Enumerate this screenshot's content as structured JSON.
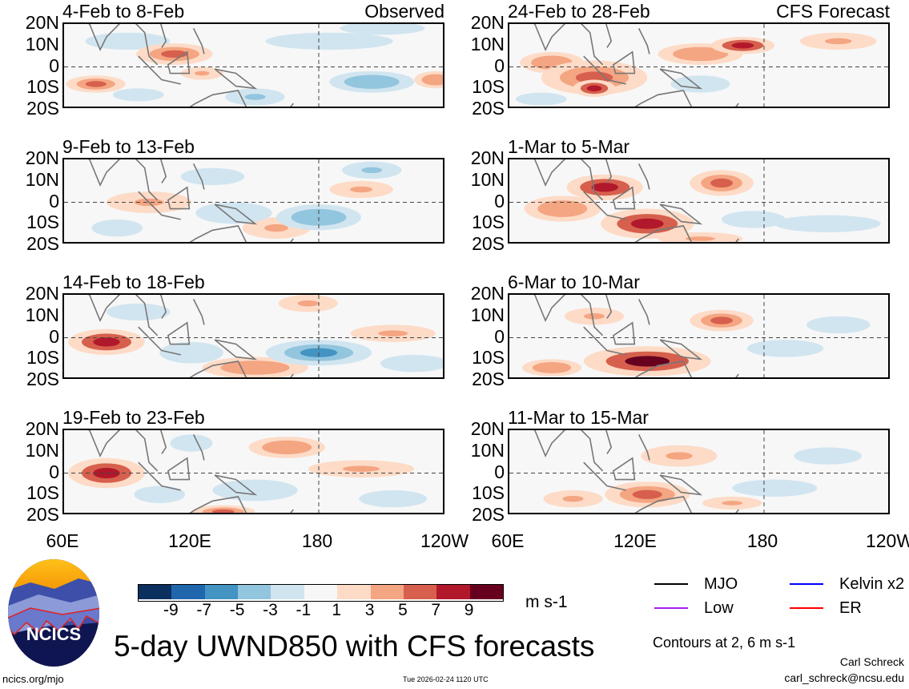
{
  "panels": [
    {
      "title": "4-Feb to 8-Feb",
      "tag": "Observed",
      "anomalies": [
        [
          112,
          6,
          18,
          5,
          6
        ],
        [
          75,
          -8,
          14,
          4,
          5
        ],
        [
          125,
          -3,
          10,
          3,
          3
        ],
        [
          205,
          -7,
          20,
          5,
          -5
        ],
        [
          150,
          -14,
          14,
          4,
          -4
        ],
        [
          95,
          -13,
          12,
          3,
          -3
        ],
        [
          90,
          12,
          20,
          4,
          -2
        ],
        [
          235,
          -6,
          10,
          4,
          4
        ],
        [
          185,
          12,
          30,
          4,
          -2
        ],
        [
          210,
          18,
          20,
          3,
          -3
        ]
      ]
    },
    {
      "title": "24-Feb to 28-Feb",
      "tag": "CFS Forecast",
      "anomalies": [
        [
          100,
          -5,
          25,
          8,
          6
        ],
        [
          80,
          2,
          15,
          5,
          4
        ],
        [
          150,
          6,
          20,
          5,
          4
        ],
        [
          170,
          10,
          15,
          4,
          7
        ],
        [
          215,
          12,
          18,
          4,
          3
        ],
        [
          100,
          -10,
          10,
          4,
          8
        ],
        [
          150,
          -8,
          14,
          4,
          -3
        ],
        [
          75,
          -15,
          12,
          3,
          -3
        ]
      ]
    },
    {
      "title": "9-Feb to 13-Feb",
      "tag": "",
      "anomalies": [
        [
          180,
          -7,
          20,
          6,
          -5
        ],
        [
          160,
          -12,
          16,
          5,
          3
        ],
        [
          140,
          -5,
          18,
          5,
          -3
        ],
        [
          100,
          0,
          20,
          5,
          3
        ],
        [
          205,
          15,
          14,
          4,
          -4
        ],
        [
          130,
          12,
          15,
          4,
          -2
        ],
        [
          85,
          -12,
          12,
          4,
          -3
        ],
        [
          200,
          6,
          15,
          4,
          3
        ]
      ]
    },
    {
      "title": "1-Mar to 5-Mar",
      "tag": "",
      "anomalies": [
        [
          105,
          7,
          18,
          6,
          7
        ],
        [
          125,
          -10,
          22,
          7,
          8
        ],
        [
          160,
          9,
          15,
          6,
          6
        ],
        [
          85,
          -3,
          18,
          6,
          4
        ],
        [
          175,
          -8,
          15,
          4,
          -3
        ],
        [
          210,
          -10,
          25,
          4,
          -3
        ],
        [
          150,
          -17,
          20,
          3,
          3
        ]
      ]
    },
    {
      "title": "14-Feb to 18-Feb",
      "tag": "",
      "anomalies": [
        [
          80,
          -2,
          18,
          6,
          8
        ],
        [
          180,
          -7,
          25,
          6,
          -6
        ],
        [
          150,
          -14,
          25,
          5,
          4
        ],
        [
          120,
          -7,
          15,
          5,
          -2
        ],
        [
          175,
          16,
          14,
          4,
          3
        ],
        [
          215,
          2,
          20,
          4,
          3
        ],
        [
          95,
          12,
          15,
          4,
          -3
        ],
        [
          225,
          -12,
          16,
          4,
          -3
        ]
      ]
    },
    {
      "title": "6-Mar to 10-Mar",
      "tag": "",
      "anomalies": [
        [
          125,
          -11,
          30,
          7,
          9
        ],
        [
          160,
          8,
          15,
          5,
          6
        ],
        [
          100,
          10,
          14,
          4,
          3
        ],
        [
          190,
          -5,
          18,
          4,
          -2
        ],
        [
          80,
          -14,
          14,
          4,
          4
        ],
        [
          215,
          6,
          15,
          4,
          -2
        ]
      ]
    },
    {
      "title": "19-Feb to 23-Feb",
      "tag": "",
      "anomalies": [
        [
          80,
          0,
          18,
          7,
          8
        ],
        [
          135,
          -18,
          15,
          3,
          5
        ],
        [
          165,
          12,
          18,
          5,
          4
        ],
        [
          200,
          2,
          25,
          4,
          3
        ],
        [
          150,
          -8,
          20,
          5,
          -3
        ],
        [
          105,
          -10,
          12,
          4,
          -2
        ],
        [
          215,
          -12,
          16,
          4,
          -3
        ],
        [
          120,
          14,
          10,
          4,
          -2
        ]
      ]
    },
    {
      "title": "11-Mar to 15-Mar",
      "tag": "",
      "anomalies": [
        [
          125,
          -10,
          20,
          6,
          6
        ],
        [
          140,
          8,
          18,
          5,
          3
        ],
        [
          90,
          -12,
          14,
          4,
          3
        ],
        [
          185,
          -7,
          20,
          4,
          -3
        ],
        [
          210,
          8,
          16,
          4,
          -2
        ],
        [
          165,
          -14,
          14,
          3,
          3
        ]
      ]
    }
  ],
  "lat_labels": [
    "20N",
    "10N",
    "0",
    "10S",
    "20S"
  ],
  "lon_labels": [
    "60E",
    "120E",
    "180",
    "120W"
  ],
  "colorbar": {
    "colors": [
      "#0b2f5e",
      "#2066ac",
      "#4393c3",
      "#92c5de",
      "#d1e5f0",
      "#f7f7f7",
      "#fddbc7",
      "#f4a582",
      "#d6604d",
      "#b2182b",
      "#67001f"
    ],
    "labels": [
      "-9",
      "-7",
      "-5",
      "-3",
      "-1",
      "1",
      "3",
      "5",
      "7",
      "9"
    ],
    "units": "m s-1"
  },
  "legend": [
    {
      "label": "MJO",
      "color": "#000000"
    },
    {
      "label": "Kelvin x2",
      "color": "#0000ff"
    },
    {
      "label": "Low",
      "color": "#a020f0"
    },
    {
      "label": "ER",
      "color": "#ff0000"
    }
  ],
  "contour_note": "Contours at 2, 6 m s-1",
  "title": "5-day UWND850 with CFS forecasts",
  "logo_text": "NCICS",
  "footer": {
    "url": "ncics.org/mjo",
    "timestamp": "Tue 2026-02-24 1120 UTC",
    "author": "Carl Schreck",
    "email": "carl_schreck@ncsu.edu"
  }
}
